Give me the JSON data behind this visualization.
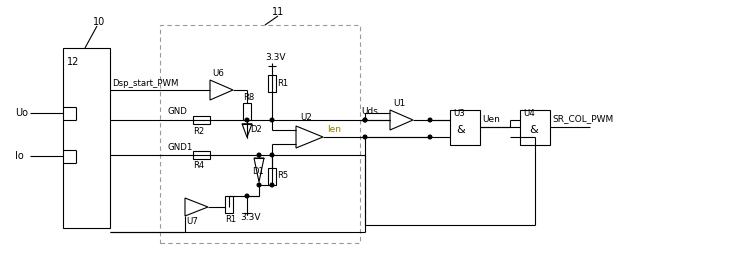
{
  "bg_color": "#ffffff",
  "line_color": "#000000",
  "box10_label": "10",
  "box12_label": "12",
  "uo_label": "Uo",
  "io_label": "Io",
  "dsp_label": "Dsp_start_PWM",
  "u6_label": "U6",
  "u7_label": "U7",
  "u2_label": "U2",
  "u1_label": "U1",
  "u3_label": "U3",
  "u4_label": "U4",
  "r8_label": "R8",
  "r1_label": "R1",
  "r2_label": "R2",
  "r4_label": "R4",
  "r5_label": "R5",
  "r1b_label": "R1",
  "d2_label": "D2",
  "d1_label": "D1",
  "gnd_label": "GND",
  "gnd1_label": "GND1",
  "v33_top": "3.3V",
  "v33_bot": "3.3V",
  "label11": "11",
  "uds_label": "Uds",
  "ien_label": "Ien",
  "uen_label": "Uen",
  "sr_label": "SR_COL_PWM",
  "and_label": "&"
}
